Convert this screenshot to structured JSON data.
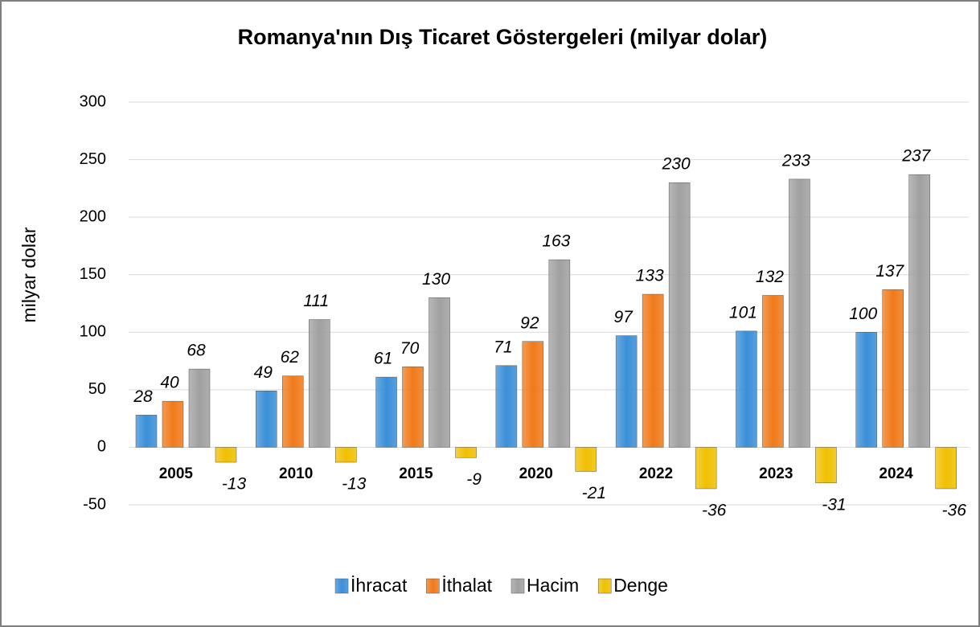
{
  "chart_data": {
    "type": "bar",
    "title": "Romanya'nın Dış Ticaret Göstergeleri (milyar dolar)",
    "y_label": "milyar dolar",
    "categories": [
      "2005",
      "2010",
      "2015",
      "2020",
      "2022",
      "2023",
      "2024"
    ],
    "series": [
      {
        "name": "İhracat",
        "color": "#3a8fd8",
        "values": [
          28,
          49,
          61,
          71,
          97,
          101,
          100
        ]
      },
      {
        "name": "İthalat",
        "color": "#f07a1a",
        "values": [
          40,
          62,
          70,
          92,
          133,
          132,
          137
        ]
      },
      {
        "name": "Hacim",
        "color": "#a0a0a0",
        "values": [
          68,
          111,
          130,
          163,
          230,
          233,
          237
        ]
      },
      {
        "name": "Denge",
        "color": "#f0c000",
        "values": [
          -13,
          -13,
          -9,
          -21,
          -36,
          -31,
          -36
        ]
      }
    ],
    "ylim": [
      -50,
      300
    ],
    "yticks": [
      -50,
      0,
      50,
      100,
      150,
      200,
      250,
      300
    ],
    "grid": true,
    "legend": "bottom"
  }
}
